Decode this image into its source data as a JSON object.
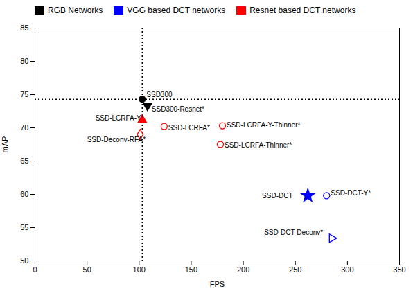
{
  "chart_data": {
    "type": "scatter",
    "xlabel": "FPS",
    "ylabel": "mAP",
    "xlim": [
      0,
      350
    ],
    "ylim": [
      50,
      85
    ],
    "xticks": [
      0,
      50,
      100,
      150,
      200,
      250,
      300,
      350
    ],
    "yticks": [
      50,
      55,
      60,
      65,
      70,
      75,
      80,
      85
    ],
    "grid": false,
    "legend": "upper left",
    "hline_y": 74.3,
    "vline_x": 103,
    "series": [
      {
        "name": "RGB Networks",
        "color": "black",
        "points": [
          {
            "label": "SSD300",
            "x": 103,
            "y": 74.3,
            "marker": "circle",
            "label_x": 107,
            "label_y": 75.0
          },
          {
            "label": "SSD300-Resnet*",
            "x": 108,
            "y": 73.3,
            "marker": "triangle_down",
            "label_x": 112,
            "label_y": 72.8
          }
        ]
      },
      {
        "name": "VGG based DCT networks",
        "color": "blue",
        "points": [
          {
            "label": "SSD-DCT",
            "x": 262,
            "y": 59.8,
            "marker": "star",
            "label_x": 218,
            "label_y": 59.8
          },
          {
            "label": "SSD-DCT-Y*",
            "x": 280,
            "y": 59.8,
            "marker": "circle_open",
            "label_x": 284,
            "label_y": 60.2
          },
          {
            "label": "SSD-DCT-Deconv*",
            "x": 285,
            "y": 53.4,
            "marker": "triangle_right_open",
            "label_x": 220,
            "label_y": 54.2
          }
        ]
      },
      {
        "name": "Resnet based DCT networks",
        "color": "red",
        "points": [
          {
            "label": "SSD-LCRFA-Y*",
            "x": 103,
            "y": 71.2,
            "marker": "triangle_up",
            "label_x": 58,
            "label_y": 71.4
          },
          {
            "label": "SSD-LCRFA*",
            "x": 124,
            "y": 70.2,
            "marker": "circle_open",
            "label_x": 128,
            "label_y": 70.0
          },
          {
            "label": "SSD-Deconv-RFA*",
            "x": 101,
            "y": 69.0,
            "marker": "diamond_open",
            "label_x": 50,
            "label_y": 68.2
          },
          {
            "label": "SSD-LCRFA-Y-Thinner*",
            "x": 180,
            "y": 70.3,
            "marker": "circle_open",
            "label_x": 184,
            "label_y": 70.4
          },
          {
            "label": "SSD-LCRFA-Thinner*",
            "x": 178,
            "y": 67.5,
            "marker": "circle_open",
            "label_x": 182,
            "label_y": 67.4
          }
        ]
      }
    ]
  }
}
